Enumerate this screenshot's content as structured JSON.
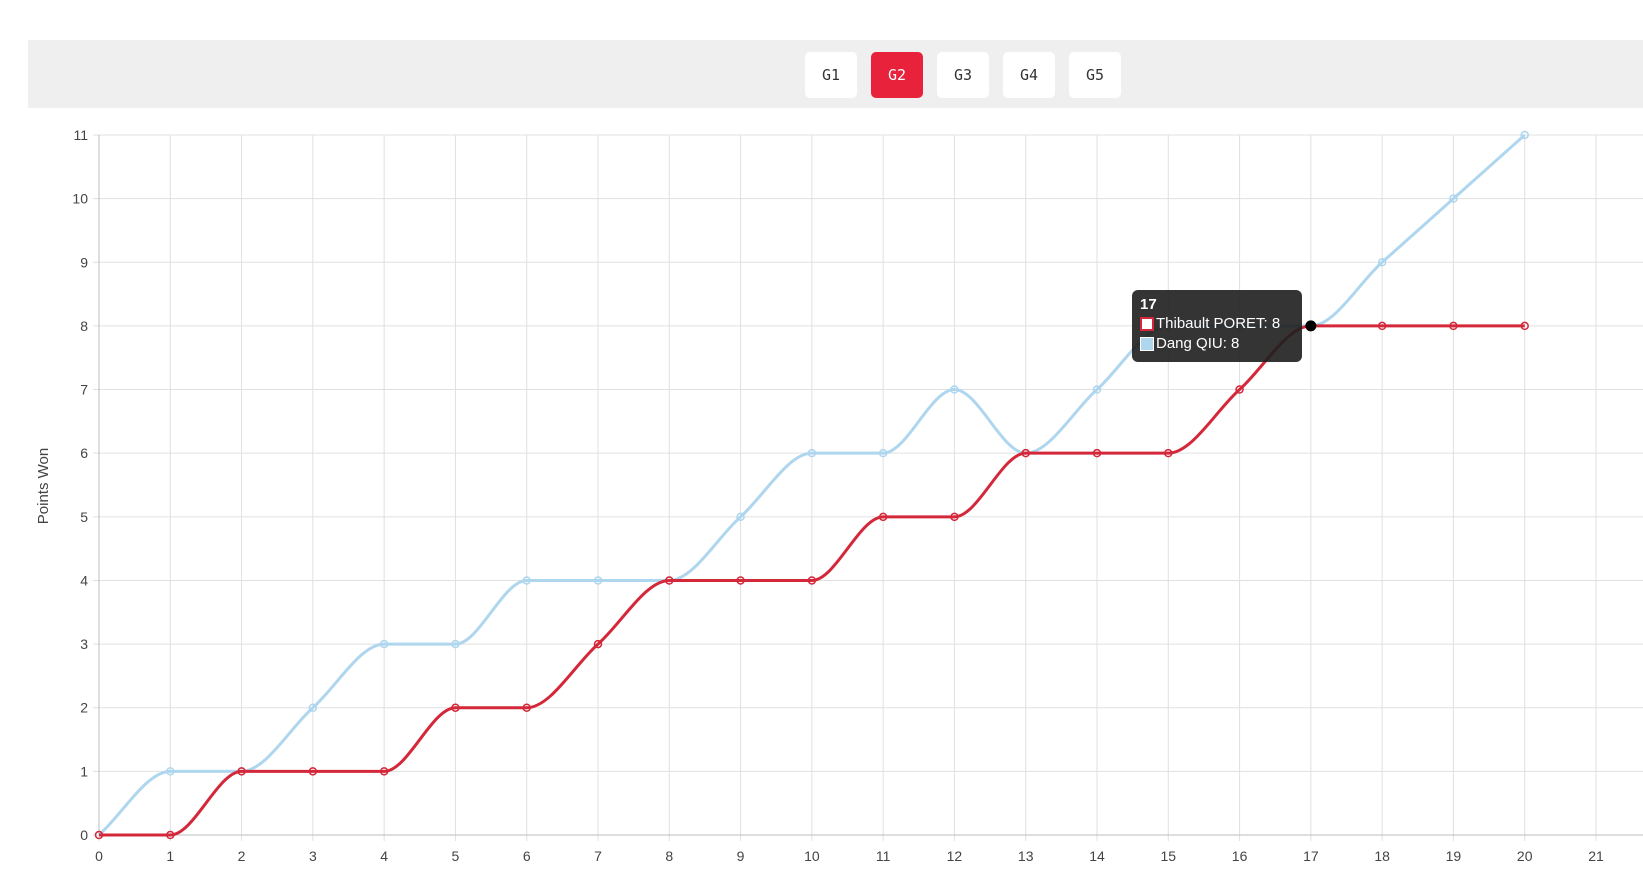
{
  "tabs": [
    {
      "label": "G1",
      "active": false
    },
    {
      "label": "G2",
      "active": true
    },
    {
      "label": "G3",
      "active": false
    },
    {
      "label": "G4",
      "active": false
    },
    {
      "label": "G5",
      "active": false
    }
  ],
  "accent_color": "#e8223a",
  "chart_data": {
    "type": "line",
    "ylabel": "Points Won",
    "xlabel": "",
    "xlim": [
      0,
      21
    ],
    "ylim": [
      0,
      11
    ],
    "x_ticks": [
      0,
      1,
      2,
      3,
      4,
      5,
      6,
      7,
      8,
      9,
      10,
      11,
      12,
      13,
      14,
      15,
      16,
      17,
      18,
      19,
      20,
      21
    ],
    "y_ticks": [
      0,
      1,
      2,
      3,
      4,
      5,
      6,
      7,
      8,
      9,
      10,
      11
    ],
    "grid": true,
    "series": [
      {
        "name": "Dang QIU",
        "color": "#aed6ee",
        "x": [
          0,
          1,
          2,
          3,
          4,
          5,
          6,
          7,
          8,
          9,
          10,
          11,
          12,
          13,
          14,
          15,
          16,
          17,
          18,
          19,
          20
        ],
        "values": [
          0,
          1,
          1,
          2,
          3,
          3,
          4,
          4,
          4,
          5,
          6,
          6,
          7,
          6,
          7,
          8,
          8,
          8,
          9,
          10,
          11
        ]
      },
      {
        "name": "Thibault PORET",
        "color": "#d4283a",
        "x": [
          0,
          1,
          2,
          3,
          4,
          5,
          6,
          7,
          8,
          9,
          10,
          11,
          12,
          13,
          14,
          15,
          16,
          17,
          18,
          19,
          20
        ],
        "values": [
          0,
          0,
          1,
          1,
          1,
          2,
          2,
          3,
          4,
          4,
          4,
          5,
          5,
          6,
          6,
          6,
          7,
          8,
          8,
          8,
          8
        ]
      }
    ],
    "tooltip": {
      "title": "17",
      "entries": [
        {
          "text": "Thibault PORET: 8",
          "color": "#d4283a"
        },
        {
          "text": "Dang QIU: 8",
          "color": "#aed6ee"
        }
      ]
    }
  }
}
